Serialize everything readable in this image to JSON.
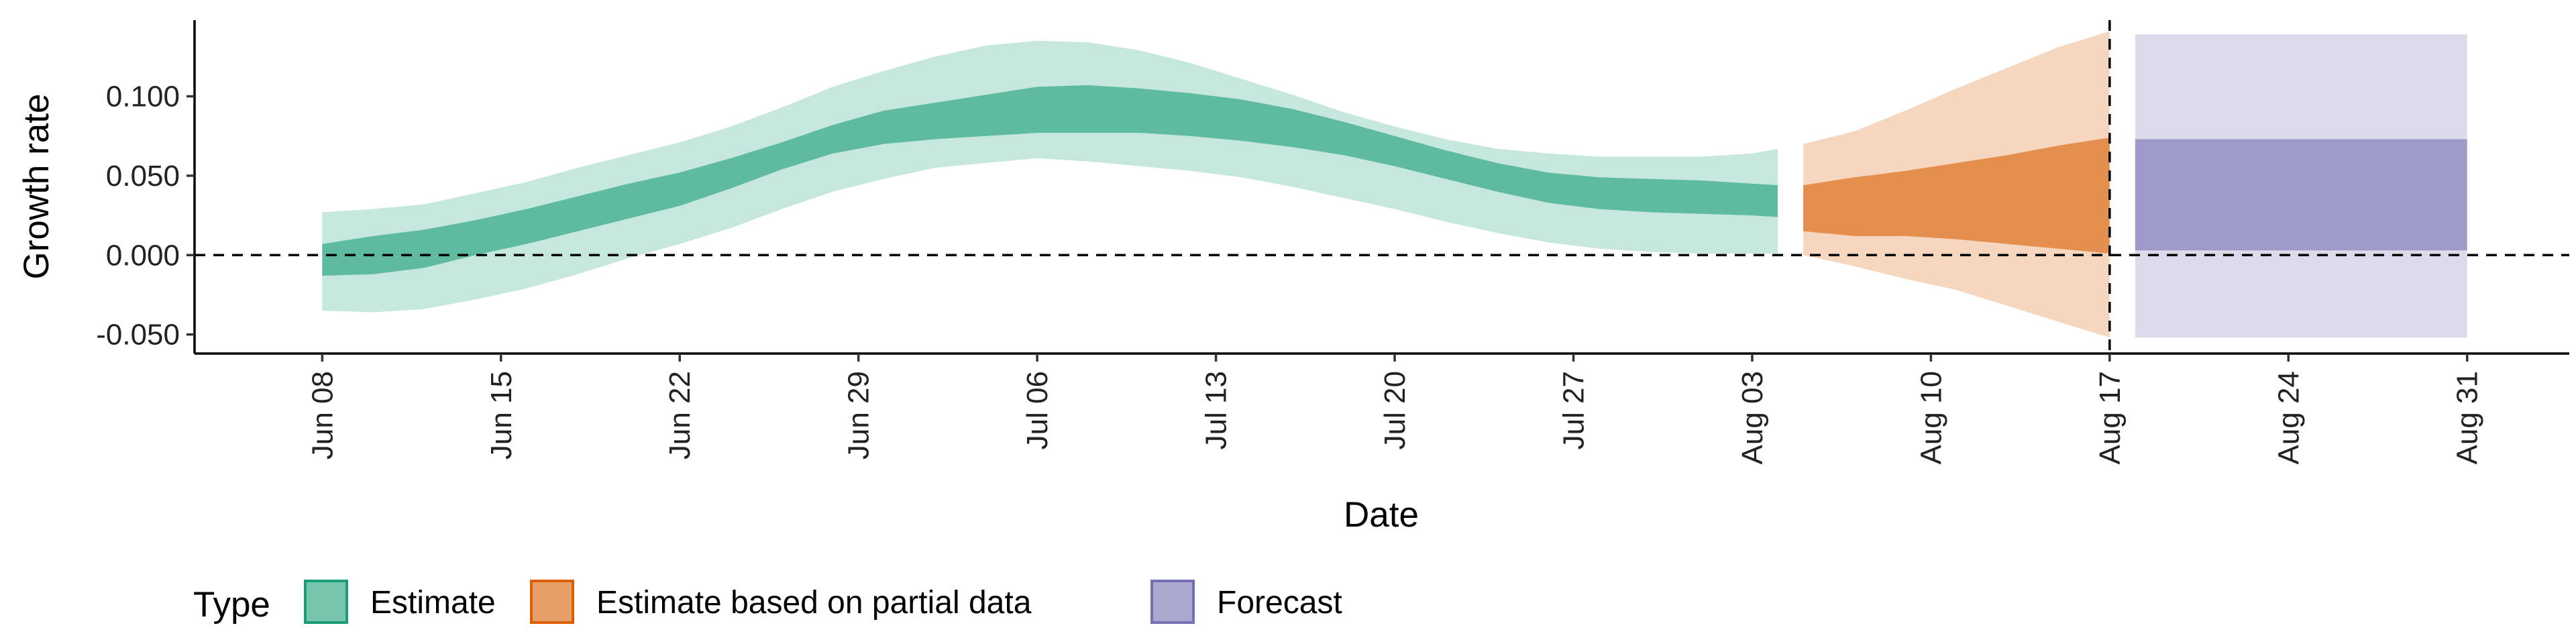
{
  "chart_data": {
    "type": "area",
    "title": "",
    "xlabel": "Date",
    "ylabel": "Growth rate",
    "x_tick_labels": [
      "Jun 08",
      "Jun 15",
      "Jun 22",
      "Jun 29",
      "Jul 06",
      "Jul 13",
      "Jul 20",
      "Jul 27",
      "Aug 03",
      "Aug 10",
      "Aug 17",
      "Aug 24",
      "Aug 31"
    ],
    "y_tick_labels": [
      "-0.050",
      "0.000",
      "0.050",
      "0.100"
    ],
    "y_ticks": [
      -0.05,
      0.0,
      0.05,
      0.1
    ],
    "xlim": [
      "2020-06-03",
      "2020-09-04"
    ],
    "ylim": [
      -0.062,
      0.148
    ],
    "reference_lines": {
      "horizontal_y": 0.0,
      "vertical_x": "2020-08-17",
      "style": "dashed"
    },
    "grid": false,
    "legend": {
      "title": "Type",
      "position": "bottom-left",
      "entries": [
        {
          "label": "Estimate",
          "color": "#1b9e77"
        },
        {
          "label": "Estimate based on partial data",
          "color": "#d95f02"
        },
        {
          "label": "Forecast",
          "color": "#7570b3"
        }
      ]
    },
    "series": [
      {
        "name": "Estimate",
        "color": "#1b9e77",
        "x": [
          "2020-06-08",
          "2020-06-10",
          "2020-06-12",
          "2020-06-14",
          "2020-06-16",
          "2020-06-18",
          "2020-06-20",
          "2020-06-22",
          "2020-06-24",
          "2020-06-26",
          "2020-06-28",
          "2020-06-30",
          "2020-07-02",
          "2020-07-04",
          "2020-07-06",
          "2020-07-08",
          "2020-07-10",
          "2020-07-12",
          "2020-07-14",
          "2020-07-16",
          "2020-07-18",
          "2020-07-20",
          "2020-07-22",
          "2020-07-24",
          "2020-07-26",
          "2020-07-28",
          "2020-07-30",
          "2020-08-01",
          "2020-08-03",
          "2020-08-04"
        ],
        "lower90": [
          -0.035,
          -0.036,
          -0.034,
          -0.028,
          -0.021,
          -0.012,
          -0.002,
          0.007,
          0.017,
          0.029,
          0.04,
          0.048,
          0.055,
          0.058,
          0.061,
          0.059,
          0.056,
          0.053,
          0.049,
          0.043,
          0.036,
          0.029,
          0.021,
          0.014,
          0.008,
          0.004,
          0.002,
          0.001,
          0.001,
          0.001
        ],
        "lower50": [
          -0.013,
          -0.012,
          -0.008,
          0.0,
          0.007,
          0.015,
          0.023,
          0.031,
          0.042,
          0.054,
          0.064,
          0.07,
          0.073,
          0.075,
          0.077,
          0.077,
          0.077,
          0.075,
          0.072,
          0.068,
          0.063,
          0.056,
          0.048,
          0.04,
          0.033,
          0.029,
          0.027,
          0.026,
          0.025,
          0.024
        ],
        "upper50": [
          0.007,
          0.012,
          0.016,
          0.022,
          0.029,
          0.037,
          0.045,
          0.052,
          0.061,
          0.071,
          0.082,
          0.091,
          0.096,
          0.101,
          0.106,
          0.107,
          0.105,
          0.102,
          0.098,
          0.092,
          0.084,
          0.075,
          0.066,
          0.058,
          0.052,
          0.049,
          0.048,
          0.047,
          0.045,
          0.044
        ],
        "upper90": [
          0.027,
          0.029,
          0.032,
          0.039,
          0.046,
          0.055,
          0.063,
          0.071,
          0.081,
          0.093,
          0.106,
          0.116,
          0.125,
          0.132,
          0.135,
          0.134,
          0.129,
          0.121,
          0.111,
          0.101,
          0.09,
          0.081,
          0.073,
          0.067,
          0.064,
          0.062,
          0.062,
          0.062,
          0.064,
          0.067
        ]
      },
      {
        "name": "Estimate based on partial data",
        "color": "#d95f02",
        "x": [
          "2020-08-05",
          "2020-08-07",
          "2020-08-09",
          "2020-08-11",
          "2020-08-13",
          "2020-08-15",
          "2020-08-17"
        ],
        "lower90": [
          0.0,
          -0.007,
          -0.015,
          -0.022,
          -0.032,
          -0.042,
          -0.052
        ],
        "lower50": [
          0.015,
          0.012,
          0.012,
          0.01,
          0.007,
          0.004,
          0.001
        ],
        "upper50": [
          0.044,
          0.049,
          0.053,
          0.058,
          0.063,
          0.069,
          0.074
        ],
        "upper90": [
          0.07,
          0.078,
          0.091,
          0.105,
          0.118,
          0.131,
          0.141
        ]
      },
      {
        "name": "Forecast",
        "color": "#7570b3",
        "x": [
          "2020-08-18",
          "2020-08-31"
        ],
        "lower90": [
          -0.052,
          -0.052
        ],
        "lower50": [
          0.003,
          0.003
        ],
        "upper50": [
          0.073,
          0.073
        ],
        "upper90": [
          0.139,
          0.139
        ]
      }
    ]
  }
}
